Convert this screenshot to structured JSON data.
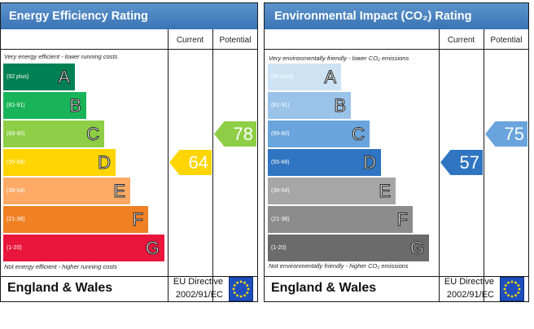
{
  "chart_data": [
    {
      "type": "bar",
      "title": "Energy Efficiency Rating",
      "column_headers": [
        "Current",
        "Potential"
      ],
      "caption_top": "Very energy efficient - lower running costs",
      "caption_bottom": "Not energy efficient - higher running costs",
      "categories": [
        "A",
        "B",
        "C",
        "D",
        "E",
        "F",
        "G"
      ],
      "ranges": [
        "(92 plus)",
        "(81-91)",
        "(69-80)",
        "(55-68)",
        "(39-54)",
        "(21-38)",
        "(1-20)"
      ],
      "band_colors": [
        "#008054",
        "#19b459",
        "#8dce46",
        "#ffd500",
        "#fcaa65",
        "#ef8023",
        "#e9153b"
      ],
      "current": 64,
      "current_band": "D",
      "current_color": "#ffd500",
      "potential": 78,
      "potential_band": "C",
      "potential_color": "#8dce46",
      "footer_title": "England & Wales",
      "eu_directive": [
        "EU Directive",
        "2002/91/EC"
      ]
    },
    {
      "type": "bar",
      "title": "Environmental Impact (CO₂) Rating",
      "column_headers": [
        "Current",
        "Potential"
      ],
      "caption_top": "Very environmentally friendly - lower CO₂ emissions",
      "caption_bottom": "Not environmentally friendly - higher CO₂ emissions",
      "categories": [
        "A",
        "B",
        "C",
        "D",
        "E",
        "F",
        "G"
      ],
      "ranges": [
        "(92 plus)",
        "(81-91)",
        "(69-80)",
        "(55-68)",
        "(39-54)",
        "(21-38)",
        "(1-20)"
      ],
      "band_colors": [
        "#cde3f4",
        "#9ac3ea",
        "#6aa4dc",
        "#2f75c2",
        "#a6a6a6",
        "#8c8c8c",
        "#6b6b6b"
      ],
      "current": 57,
      "current_band": "D",
      "current_color": "#2f75c2",
      "potential": 75,
      "potential_band": "C",
      "potential_color": "#6aa4dc",
      "footer_title": "England & Wales",
      "eu_directive": [
        "EU Directive",
        "2002/91/EC"
      ]
    }
  ]
}
